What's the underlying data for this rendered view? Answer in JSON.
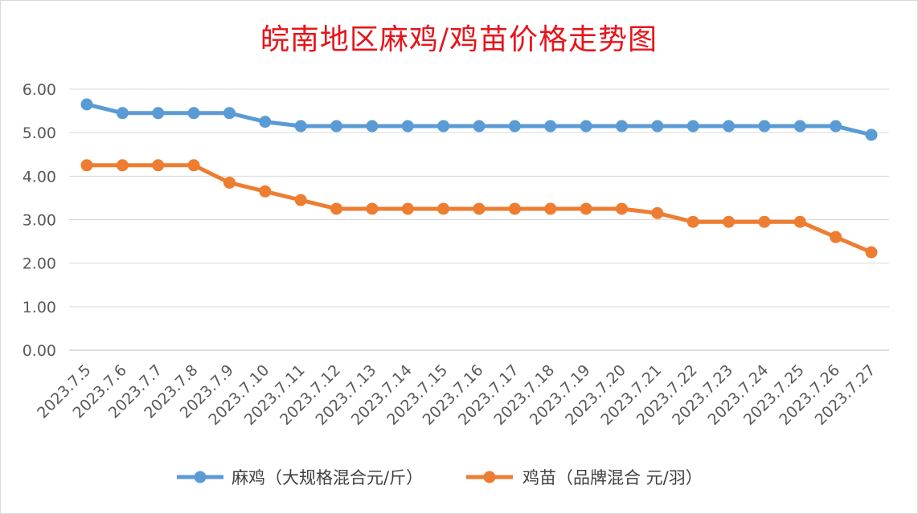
{
  "chart_data": {
    "type": "line",
    "title": "皖南地区麻鸡/鸡苗价格走势图",
    "xlabel": "",
    "ylabel": "",
    "categories": [
      "2023.7.5",
      "2023.7.6",
      "2023.7.7",
      "2023.7.8",
      "2023.7.9",
      "2023.7.10",
      "2023.7.11",
      "2023.7.12",
      "2023.7.13",
      "2023.7.14",
      "2023.7.15",
      "2023.7.16",
      "2023.7.17",
      "2023.7.18",
      "2023.7.19",
      "2023.7.20",
      "2023.7.21",
      "2023.7.22",
      "2023.7.23",
      "2023.7.24",
      "2023.7.25",
      "2023.7.26",
      "2023.7.27"
    ],
    "ylim": [
      0,
      6
    ],
    "yticks": [
      "0.00",
      "1.00",
      "2.00",
      "3.00",
      "4.00",
      "5.00",
      "6.00"
    ],
    "grid": true,
    "legend": "bottom",
    "series": [
      {
        "name": "麻鸡（大规格混合元/斤）",
        "color": "#5b9bd5",
        "values": [
          5.65,
          5.45,
          5.45,
          5.45,
          5.45,
          5.25,
          5.15,
          5.15,
          5.15,
          5.15,
          5.15,
          5.15,
          5.15,
          5.15,
          5.15,
          5.15,
          5.15,
          5.15,
          5.15,
          5.15,
          5.15,
          5.15,
          4.95
        ]
      },
      {
        "name": "鸡苗（品牌混合 元/羽）",
        "color": "#ed7d31",
        "values": [
          4.25,
          4.25,
          4.25,
          4.25,
          3.85,
          3.65,
          3.45,
          3.25,
          3.25,
          3.25,
          3.25,
          3.25,
          3.25,
          3.25,
          3.25,
          3.25,
          3.15,
          2.95,
          2.95,
          2.95,
          2.95,
          2.6,
          2.25
        ]
      }
    ]
  }
}
